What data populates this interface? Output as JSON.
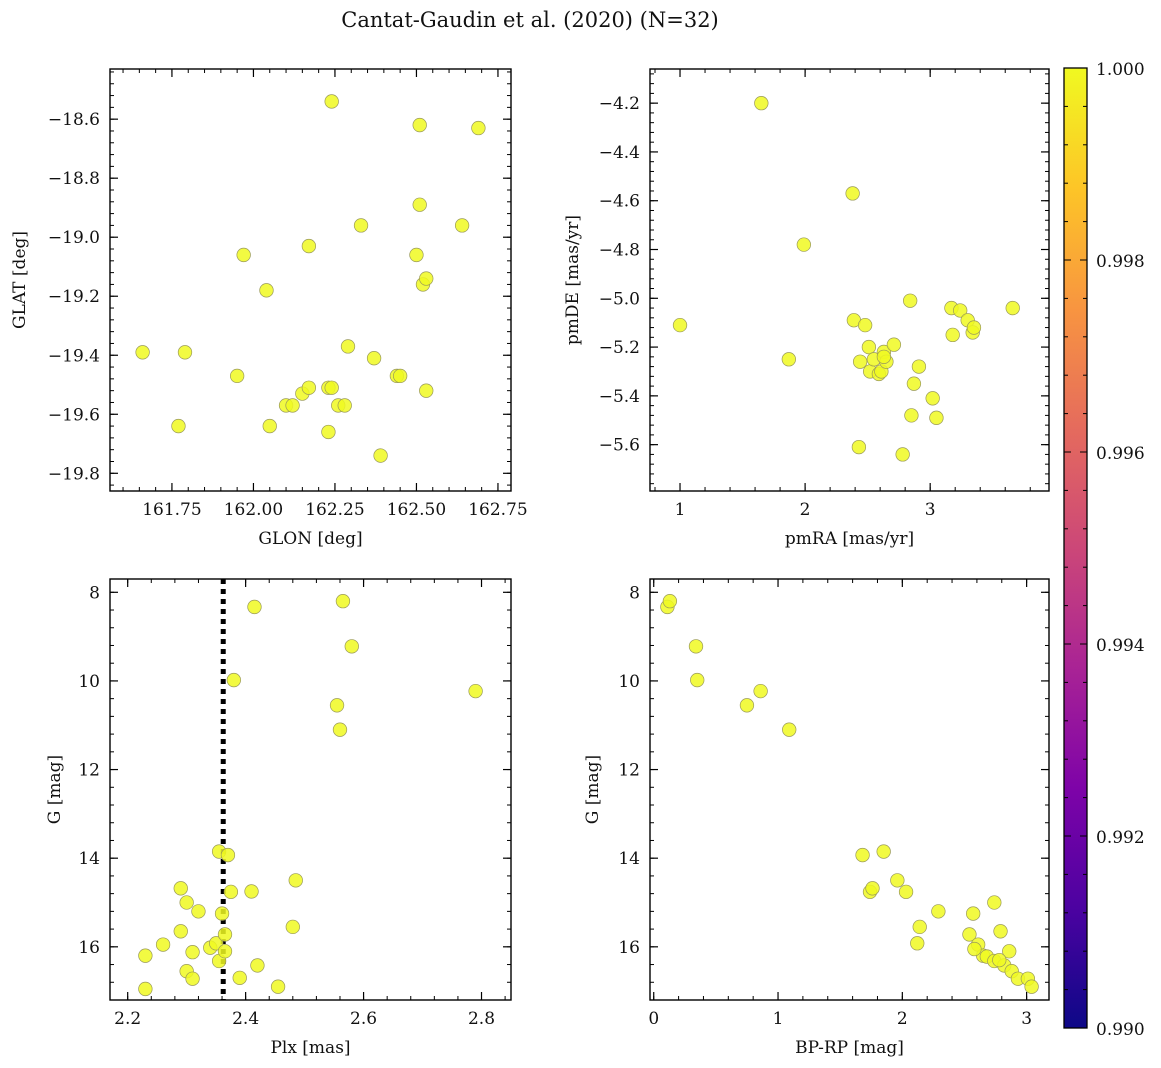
{
  "figure": {
    "title": "Cantat-Gaudin et al. (2020) (N=32)"
  },
  "colors": {
    "marker_fill": "#f0f921",
    "marker_edge": "#9a9a5a",
    "vline": "#000000",
    "axis": "#000000"
  },
  "colorbar": {
    "min": 0.99,
    "max": 1.0,
    "ticks": [
      "0.990",
      "0.992",
      "0.994",
      "0.996",
      "0.998",
      "1.000"
    ],
    "colormap": "plasma"
  },
  "chart_data": [
    {
      "type": "scatter",
      "panel": "top-left",
      "xlabel": "GLON [deg]",
      "ylabel": "GLAT [deg]",
      "xlim": [
        161.56,
        162.79
      ],
      "ylim": [
        -19.86,
        -18.43
      ],
      "yinvert": false,
      "xticks": [
        161.75,
        162.0,
        162.25,
        162.5,
        162.75
      ],
      "xticklabels": [
        "161.75",
        "162.00",
        "162.25",
        "162.50",
        "162.75"
      ],
      "yticks": [
        -18.6,
        -18.8,
        -19.0,
        -19.2,
        -19.4,
        -19.6,
        -19.8
      ],
      "yticklabels": [
        "−18.6",
        "−18.8",
        "−19.0",
        "−19.2",
        "−19.4",
        "−19.6",
        "−19.8"
      ],
      "x": [
        161.66,
        161.77,
        161.79,
        161.95,
        161.97,
        162.04,
        162.05,
        162.1,
        162.12,
        162.15,
        162.17,
        162.17,
        162.23,
        162.23,
        162.24,
        162.24,
        162.26,
        162.28,
        162.29,
        162.33,
        162.37,
        162.39,
        162.44,
        162.45,
        162.5,
        162.51,
        162.51,
        162.52,
        162.53,
        162.53,
        162.64,
        162.69
      ],
      "y": [
        -19.39,
        -19.64,
        -19.39,
        -19.47,
        -19.06,
        -19.18,
        -19.64,
        -19.57,
        -19.57,
        -19.53,
        -19.51,
        -19.03,
        -19.66,
        -19.51,
        -19.51,
        -18.54,
        -19.57,
        -19.57,
        -19.37,
        -18.96,
        -19.41,
        -19.74,
        -19.47,
        -19.47,
        -19.06,
        -18.89,
        -18.62,
        -19.16,
        -19.14,
        -19.52,
        -18.96,
        -18.63
      ]
    },
    {
      "type": "scatter",
      "panel": "top-right",
      "xlabel": "pmRA [mas/yr]",
      "ylabel": "pmDE [mas/yr]",
      "xlim": [
        0.76,
        3.95
      ],
      "ylim": [
        -5.79,
        -4.06
      ],
      "yinvert": false,
      "xticks": [
        1,
        2,
        3
      ],
      "xticklabels": [
        "1",
        "2",
        "3"
      ],
      "yticks": [
        -4.2,
        -4.4,
        -4.6,
        -4.8,
        -5.0,
        -5.2,
        -5.4,
        -5.6
      ],
      "yticklabels": [
        "−4.2",
        "−4.4",
        "−4.6",
        "−4.8",
        "−5.0",
        "−5.2",
        "−5.4",
        "−5.6"
      ],
      "x": [
        1.0,
        1.65,
        1.87,
        1.99,
        2.38,
        2.39,
        2.43,
        2.44,
        2.48,
        2.51,
        2.52,
        2.55,
        2.59,
        2.61,
        2.63,
        2.65,
        2.71,
        2.78,
        2.84,
        2.85,
        2.87,
        2.91,
        3.02,
        3.05,
        3.17,
        3.18,
        3.24,
        3.3,
        3.34,
        3.35,
        3.66,
        2.63
      ],
      "y": [
        -5.11,
        -4.2,
        -5.25,
        -4.78,
        -4.57,
        -5.09,
        -5.61,
        -5.26,
        -5.11,
        -5.2,
        -5.3,
        -5.25,
        -5.31,
        -5.3,
        -5.22,
        -5.26,
        -5.19,
        -5.64,
        -5.01,
        -5.48,
        -5.35,
        -5.28,
        -5.41,
        -5.49,
        -5.04,
        -5.15,
        -5.05,
        -5.09,
        -5.14,
        -5.12,
        -5.04,
        -5.24
      ]
    },
    {
      "type": "scatter",
      "panel": "bottom-left",
      "xlabel": "Plx [mas]",
      "ylabel": "G [mag]",
      "xlim": [
        2.17,
        2.85
      ],
      "ylim": [
        7.7,
        17.2
      ],
      "yinvert": true,
      "vline": 2.362,
      "xticks": [
        2.2,
        2.4,
        2.6,
        2.8
      ],
      "xticklabels": [
        "2.2",
        "2.4",
        "2.6",
        "2.8"
      ],
      "yticks": [
        8,
        10,
        12,
        14,
        16
      ],
      "yticklabels": [
        "8",
        "10",
        "12",
        "14",
        "16"
      ],
      "x": [
        2.23,
        2.23,
        2.26,
        2.29,
        2.29,
        2.3,
        2.3,
        2.31,
        2.31,
        2.32,
        2.34,
        2.35,
        2.355,
        2.355,
        2.36,
        2.365,
        2.37,
        2.375,
        2.38,
        2.39,
        2.41,
        2.415,
        2.42,
        2.455,
        2.48,
        2.485,
        2.555,
        2.56,
        2.565,
        2.58,
        2.79,
        2.365
      ],
      "y": [
        16.2,
        16.95,
        15.95,
        15.65,
        14.68,
        15.0,
        16.55,
        16.12,
        16.72,
        15.2,
        16.02,
        15.92,
        16.32,
        13.85,
        15.25,
        15.72,
        13.93,
        14.76,
        9.98,
        16.7,
        14.75,
        8.33,
        16.42,
        16.9,
        15.55,
        14.5,
        10.55,
        11.1,
        8.2,
        9.22,
        10.23,
        16.1
      ]
    },
    {
      "type": "scatter",
      "panel": "bottom-right",
      "xlabel": "BP-RP [mag]",
      "ylabel": "G [mag]",
      "xlim": [
        -0.03,
        3.18
      ],
      "ylim": [
        7.7,
        17.2
      ],
      "yinvert": true,
      "xticks": [
        0,
        1,
        2,
        3
      ],
      "xticklabels": [
        "0",
        "1",
        "2",
        "3"
      ],
      "yticks": [
        8,
        10,
        12,
        14,
        16
      ],
      "yticklabels": [
        "8",
        "10",
        "12",
        "14",
        "16"
      ],
      "x": [
        0.11,
        0.13,
        0.34,
        0.35,
        0.75,
        0.86,
        1.09,
        1.68,
        1.74,
        1.76,
        1.85,
        1.96,
        2.03,
        2.12,
        2.14,
        2.29,
        2.54,
        2.57,
        2.61,
        2.65,
        2.68,
        2.74,
        2.74,
        2.79,
        2.82,
        2.86,
        2.88,
        2.93,
        3.01,
        3.04,
        2.78,
        2.58
      ],
      "y": [
        8.33,
        8.2,
        9.22,
        9.98,
        10.55,
        10.23,
        11.1,
        13.93,
        14.76,
        14.68,
        13.85,
        14.5,
        14.76,
        15.92,
        15.55,
        15.2,
        15.72,
        15.25,
        15.95,
        16.2,
        16.22,
        15.0,
        16.32,
        15.65,
        16.42,
        16.1,
        16.55,
        16.72,
        16.72,
        16.9,
        16.3,
        16.05
      ]
    }
  ]
}
